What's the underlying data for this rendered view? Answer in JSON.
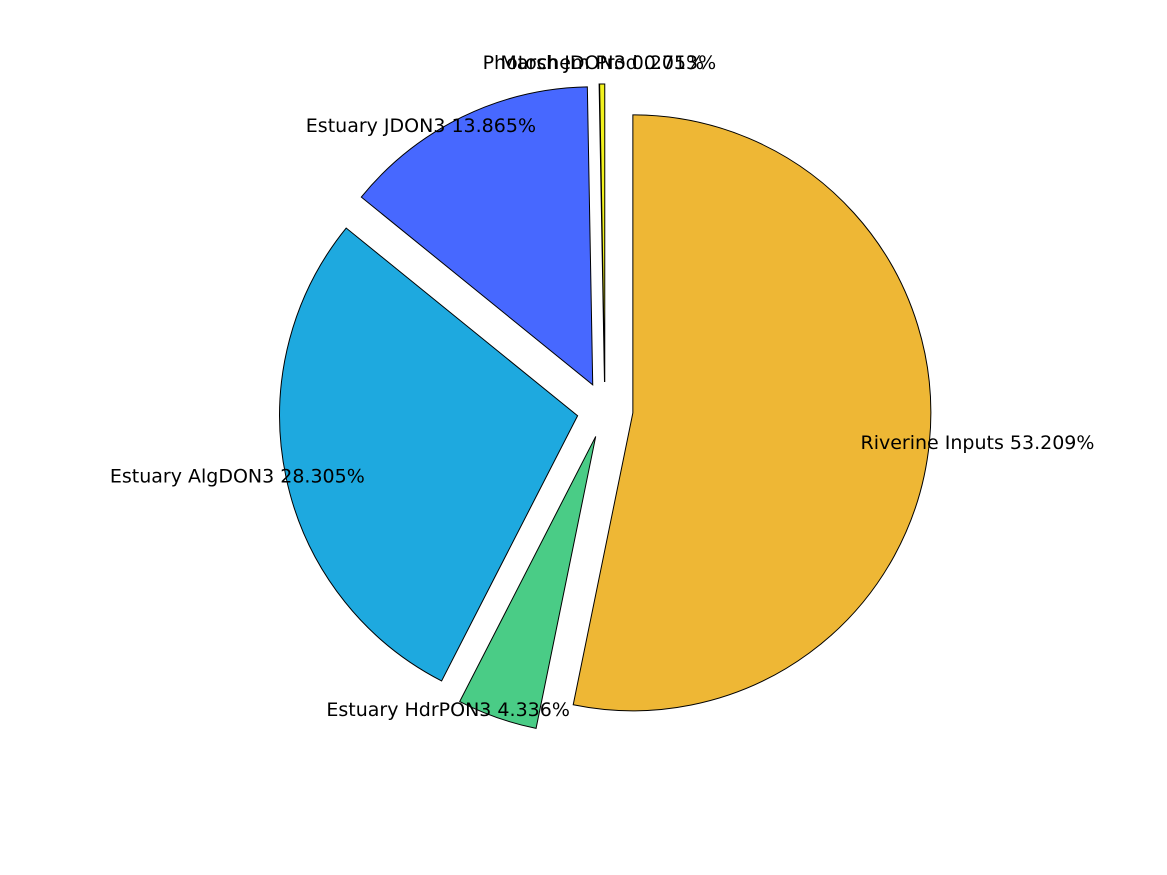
{
  "chart_data": {
    "type": "pie",
    "exploded": true,
    "slices": [
      {
        "label": "Riverine Inputs 53.209%",
        "name": "Riverine Inputs",
        "value": 53.209,
        "color": "#EEB735"
      },
      {
        "label": "Estuary HdrPON3 4.336%",
        "name": "Estuary HdrPON3",
        "value": 4.336,
        "color": "#4ACC86"
      },
      {
        "label": "Estuary AlgDON3 28.305%",
        "name": "Estuary AlgDON3",
        "value": 28.305,
        "color": "#1EA9DF"
      },
      {
        "label": "Estuary JDON3 13.865%",
        "name": "Estuary JDON3",
        "value": 13.865,
        "color": "#4768FF"
      },
      {
        "label": "Photochem Prod 0.013%",
        "name": "Photochem Prod",
        "value": 0.013,
        "color": "#E04BE0"
      },
      {
        "label": "Marsh JDON3 0.275%",
        "name": "Marsh JDON3",
        "value": 0.275,
        "color": "#F2F21E"
      }
    ]
  }
}
